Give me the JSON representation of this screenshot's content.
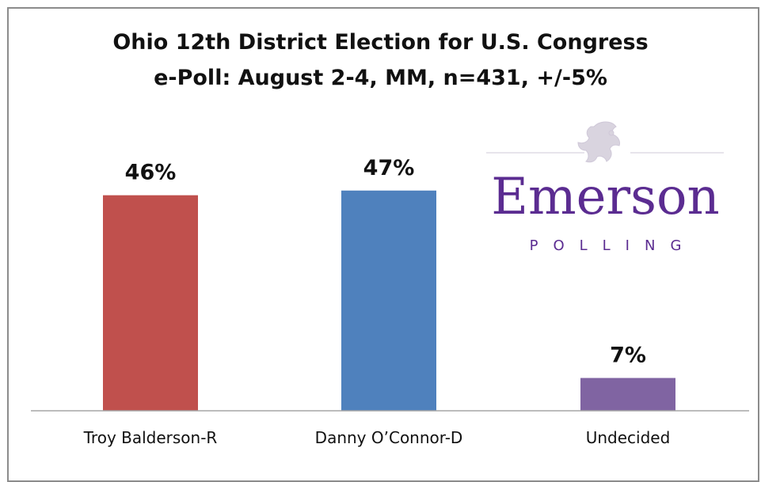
{
  "chart_data": {
    "type": "bar",
    "title": "Ohio 12th District Election for U.S. Congress",
    "subtitle": "e-Poll: August 2-4, MM, n=431, +/-5%",
    "categories": [
      "Troy Balderson-R",
      "Danny O’Connor-D",
      "Undecided"
    ],
    "values": [
      46,
      47,
      7
    ],
    "data_labels": [
      "46%",
      "47%",
      "7%"
    ],
    "colors": [
      "#c0504d",
      "#4f81bd",
      "#8064a2"
    ],
    "ylim": [
      0,
      50
    ],
    "grid": false,
    "legend": "none"
  },
  "logo": {
    "word": "Emerson",
    "sub": "POLLING",
    "emblem": "lion-crest-icon",
    "color": "#5b2c91"
  }
}
